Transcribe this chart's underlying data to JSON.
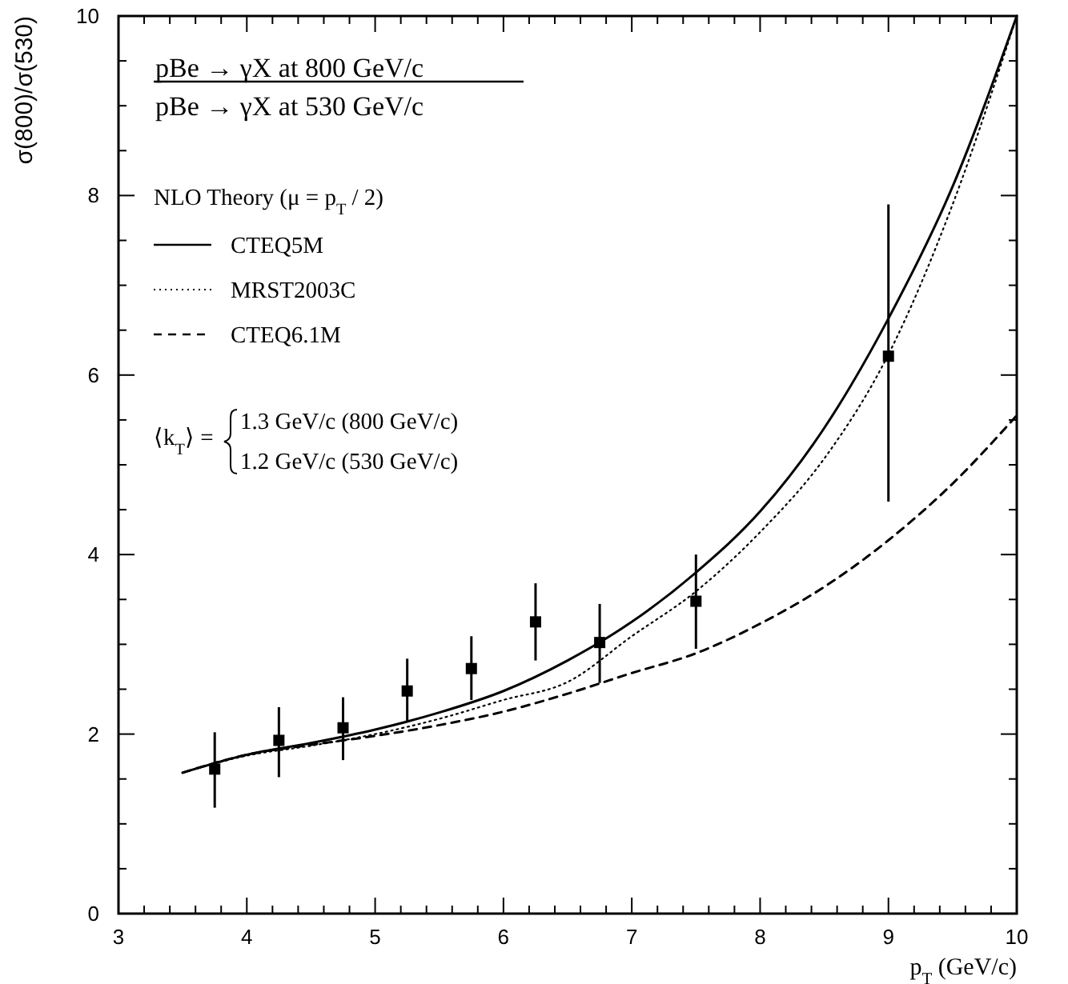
{
  "chart_data": {
    "type": "line",
    "xlabel": "p$_{T}$ (GeV/c)",
    "ylabel": "σ(800)/σ(530)",
    "legend_title": "NLO Theory (μ = p$_{T}$ / 2)",
    "legend": "top left",
    "annotations": [
      "pBe → γX at 800 GeV/c",
      "pBe → γX at 530 GeV/c",
      "⟨k$_{T}$⟩ =",
      "1.3 GeV/c (800 GeV/c)",
      "1.2 GeV/c (530 GeV/c)"
    ],
    "xlim": [
      3,
      10
    ],
    "ylim": [
      0,
      10
    ],
    "xticks": [
      3,
      {
        "value": 3.2,
        "label": null
      },
      {
        "value": 3.4,
        "label": null
      },
      {
        "value": 3.6,
        "label": null
      },
      {
        "value": 3.8,
        "label": null
      },
      4,
      {
        "value": 4.2,
        "label": null
      },
      {
        "value": 4.4,
        "label": null
      },
      {
        "value": 4.6,
        "label": null
      },
      {
        "value": 4.8,
        "label": null
      },
      5,
      {
        "value": 5.2,
        "label": null
      },
      {
        "value": 5.4,
        "label": null
      },
      {
        "value": 5.6,
        "label": null
      },
      {
        "value": 5.8,
        "label": null
      },
      6,
      {
        "value": 6.2,
        "label": null
      },
      {
        "value": 6.4,
        "label": null
      },
      {
        "value": 6.6,
        "label": null
      },
      {
        "value": 6.8,
        "label": null
      },
      7,
      {
        "value": 7.2,
        "label": null
      },
      {
        "value": 7.4,
        "label": null
      },
      {
        "value": 7.6,
        "label": null
      },
      {
        "value": 7.8,
        "label": null
      },
      8,
      {
        "value": 8.2,
        "label": null
      },
      {
        "value": 8.4,
        "label": null
      },
      {
        "value": 8.6,
        "label": null
      },
      {
        "value": 8.8,
        "label": null
      },
      9,
      {
        "value": 9.2,
        "label": null
      },
      {
        "value": 9.4,
        "label": null
      },
      {
        "value": 9.6,
        "label": null
      },
      {
        "value": 9.8,
        "label": null
      },
      10
    ],
    "yticks": [
      0,
      {
        "value": 0.5,
        "label": null
      },
      {
        "value": 1,
        "label": null
      },
      {
        "value": 1.5,
        "label": null
      },
      2,
      {
        "value": 2.5,
        "label": null
      },
      {
        "value": 3,
        "label": null
      },
      {
        "value": 3.5,
        "label": null
      },
      4,
      {
        "value": 4.5,
        "label": null
      },
      {
        "value": 5,
        "label": null
      },
      {
        "value": 5.5,
        "label": null
      },
      6,
      {
        "value": 6.5,
        "label": null
      },
      {
        "value": 7,
        "label": null
      },
      {
        "value": 7.5,
        "label": null
      },
      8,
      {
        "value": 8.5,
        "label": null
      },
      {
        "value": 9,
        "label": null
      },
      {
        "value": 9.5,
        "label": null
      },
      10
    ],
    "series": [
      {
        "name": "CTEQ5M",
        "color": "#000000",
        "line_style": "solid",
        "x": [
          3.5,
          4,
          4.5,
          5,
          5.5,
          6,
          6.5,
          7,
          7.5,
          8,
          8.5,
          9,
          9.5,
          10
        ],
        "values": [
          1.57,
          1.77,
          1.9,
          2.05,
          2.24,
          2.48,
          2.82,
          3.25,
          3.8,
          4.48,
          5.41,
          6.63,
          8.1,
          10
        ]
      },
      {
        "name": "MRST2003C",
        "color": "#000000",
        "line_style": "dotted",
        "x": [
          3.5,
          4,
          4.5,
          5,
          5.5,
          6,
          6.5,
          7,
          7.5,
          8,
          8.5,
          9,
          9.5,
          10
        ],
        "values": [
          1.57,
          1.76,
          1.87,
          2.0,
          2.17,
          2.38,
          2.58,
          3.09,
          3.59,
          4.25,
          5.07,
          6.23,
          7.9,
          10
        ]
      },
      {
        "name": "CTEQ6.1M",
        "color": "#000000",
        "line_style": "dashed",
        "x": [
          3.5,
          4,
          4.5,
          5,
          5.5,
          6,
          6.5,
          7,
          7.5,
          8,
          8.5,
          9,
          9.5,
          10
        ],
        "values": [
          1.57,
          1.77,
          1.88,
          1.98,
          2.1,
          2.25,
          2.45,
          2.68,
          2.9,
          3.23,
          3.64,
          4.16,
          4.79,
          5.55
        ]
      },
      {
        "type": "scatter",
        "marker": "square",
        "color": "#000000",
        "x": [
          3.75,
          4.25,
          4.75,
          5.25,
          5.75,
          6.25,
          6.75,
          7.5,
          9
        ],
        "values": [
          1.61,
          1.93,
          2.07,
          2.48,
          2.73,
          3.25,
          3.02,
          3.48,
          6.21
        ],
        "errors": [
          [
            1.18,
            2.02
          ],
          [
            1.52,
            2.3
          ],
          [
            1.71,
            2.41
          ],
          [
            2.13,
            2.84
          ],
          [
            2.38,
            3.09
          ],
          [
            2.82,
            3.68
          ],
          [
            2.57,
            3.45
          ],
          [
            2.95,
            4.0
          ],
          [
            4.59,
            7.9
          ]
        ]
      }
    ]
  }
}
